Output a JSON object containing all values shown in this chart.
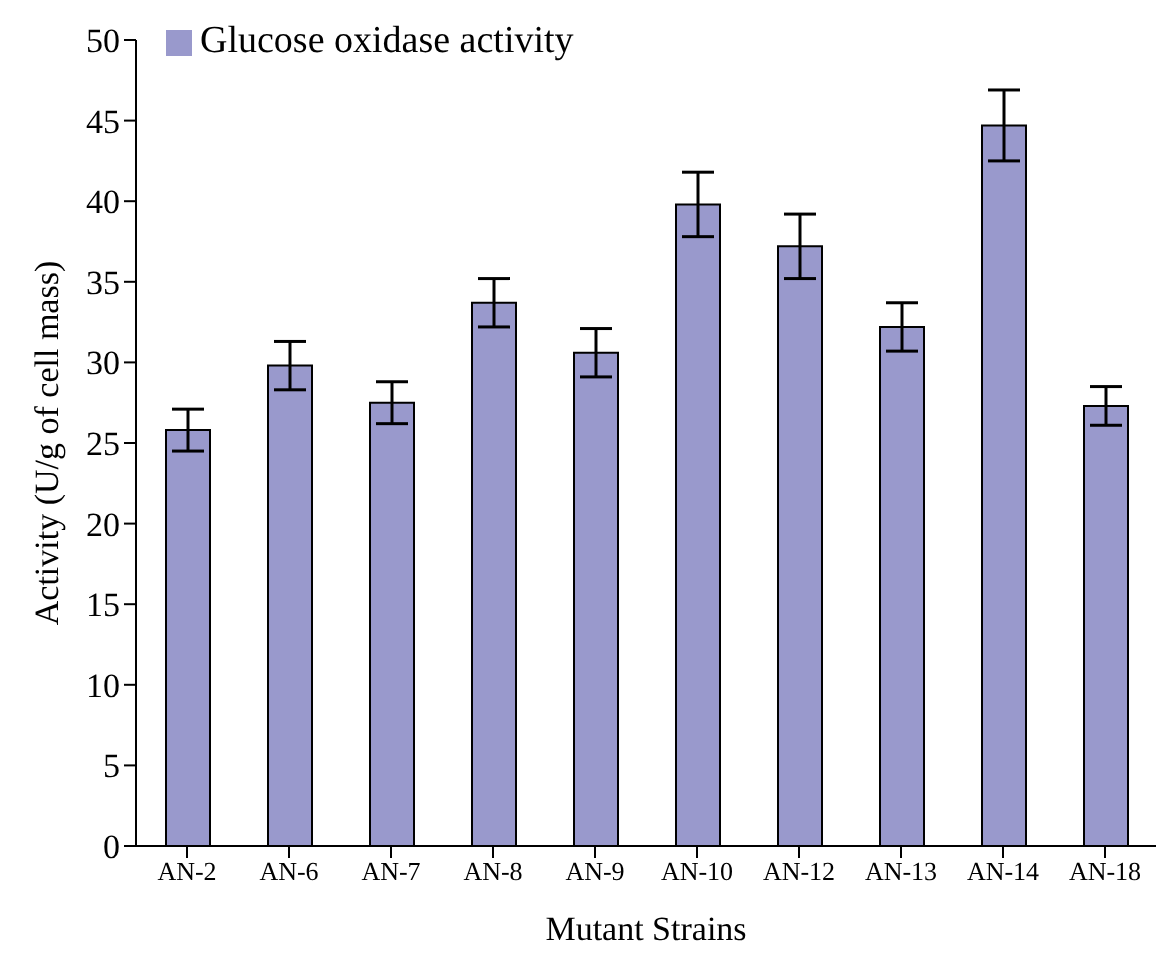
{
  "chart_data": {
    "type": "bar",
    "xlabel": "Mutant Strains",
    "ylabel": "Activity (U/g of cell mass)",
    "categories": [
      "AN-2",
      "AN-6",
      "AN-7",
      "AN-8",
      "AN-9",
      "AN-10",
      "AN-12",
      "AN-13",
      "AN-14",
      "AN-18"
    ],
    "series": [
      {
        "name": "Glucose oxidase activity",
        "color": "#9999cc",
        "values": [
          25.8,
          29.8,
          27.5,
          33.7,
          30.6,
          39.8,
          37.2,
          32.2,
          44.7,
          27.3
        ],
        "errors": [
          1.3,
          1.5,
          1.3,
          1.5,
          1.5,
          2.0,
          2.0,
          1.5,
          2.2,
          1.2
        ]
      }
    ],
    "ylim": [
      0,
      50
    ],
    "yticks": [
      0,
      5,
      10,
      15,
      20,
      25,
      30,
      35,
      40,
      45,
      50
    ],
    "grid": false,
    "legend": "top left"
  }
}
